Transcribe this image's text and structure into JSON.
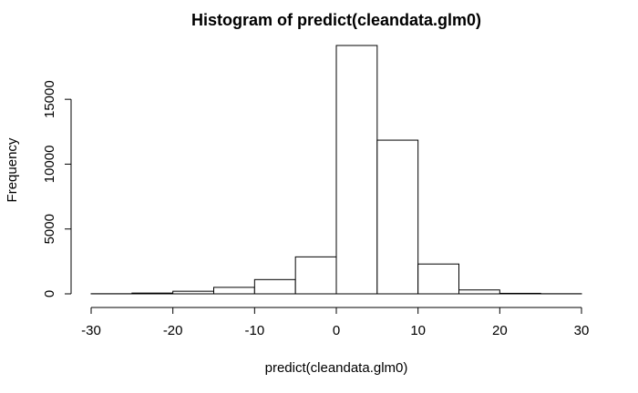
{
  "chart_data": {
    "type": "bar",
    "title": "Histogram of predict(cleandata.glm0)",
    "xlabel": "predict(cleandata.glm0)",
    "ylabel": "Frequency",
    "bins": [
      {
        "start": -30,
        "end": -25,
        "count": 10
      },
      {
        "start": -25,
        "end": -20,
        "count": 60
      },
      {
        "start": -20,
        "end": -15,
        "count": 200
      },
      {
        "start": -15,
        "end": -10,
        "count": 500
      },
      {
        "start": -10,
        "end": -5,
        "count": 1100
      },
      {
        "start": -5,
        "end": 0,
        "count": 2850
      },
      {
        "start": 0,
        "end": 5,
        "count": 19150
      },
      {
        "start": 5,
        "end": 10,
        "count": 11850
      },
      {
        "start": 10,
        "end": 15,
        "count": 2300
      },
      {
        "start": 15,
        "end": 20,
        "count": 300
      },
      {
        "start": 20,
        "end": 25,
        "count": 40
      },
      {
        "start": 25,
        "end": 30,
        "count": 10
      }
    ],
    "xlim": [
      -30,
      30
    ],
    "ylim": [
      0,
      19150
    ],
    "xticks": [
      -30,
      -20,
      -10,
      0,
      10,
      20,
      30
    ],
    "yticks": [
      0,
      5000,
      10000,
      15000
    ],
    "xtick_labels": [
      "-30",
      "-20",
      "-10",
      "0",
      "10",
      "20",
      "30"
    ],
    "ytick_labels": [
      "0",
      "5000",
      "10000",
      "15000"
    ],
    "grid": false
  }
}
